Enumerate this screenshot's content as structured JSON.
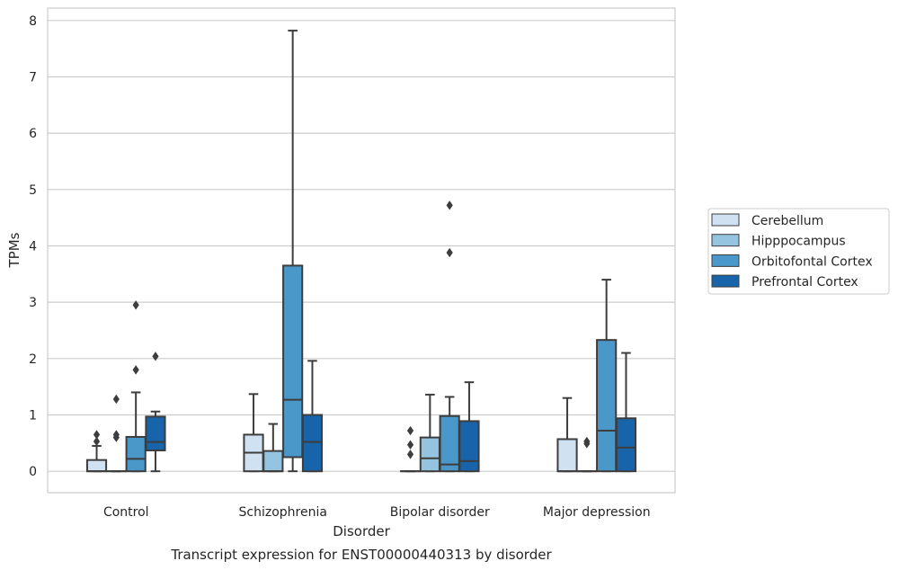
{
  "chart_data": {
    "type": "boxplot",
    "caption": "Transcript expression for ENST00000440313 by disorder",
    "xlabel": "Disorder",
    "ylabel": "TPMs",
    "ylim": [
      -0.38,
      8.22
    ],
    "yticks": [
      0,
      1,
      2,
      3,
      4,
      5,
      6,
      7,
      8
    ],
    "grid": "horizontal",
    "legend_position": "right",
    "categories": [
      "Control",
      "Schizophrenia",
      "Bipolar disorder",
      "Major depression"
    ],
    "series": [
      {
        "name": "Cerebellum",
        "color": "#d0e1f2",
        "boxes": [
          {
            "whislo": 0,
            "q1": 0,
            "med": 0,
            "q3": 0.2,
            "whishi": 0.45,
            "fliers": [
              0.53,
              0.65
            ]
          },
          {
            "whislo": 0,
            "q1": 0,
            "med": 0.33,
            "q3": 0.65,
            "whishi": 1.37,
            "fliers": []
          },
          {
            "whislo": 0,
            "q1": 0,
            "med": 0,
            "q3": 0,
            "whishi": 0,
            "fliers": [
              0.3,
              0.47,
              0.72
            ]
          },
          {
            "whislo": 0,
            "q1": 0,
            "med": 0,
            "q3": 0.57,
            "whishi": 1.3,
            "fliers": []
          }
        ]
      },
      {
        "name": "Hipppocampus",
        "color": "#94c4df",
        "boxes": [
          {
            "whislo": 0,
            "q1": 0,
            "med": 0,
            "q3": 0,
            "whishi": 0,
            "fliers": [
              0.6,
              0.65,
              1.28
            ]
          },
          {
            "whislo": 0,
            "q1": 0,
            "med": 0,
            "q3": 0.36,
            "whishi": 0.84,
            "fliers": []
          },
          {
            "whislo": 0,
            "q1": 0,
            "med": 0.23,
            "q3": 0.6,
            "whishi": 1.36,
            "fliers": []
          },
          {
            "whislo": 0,
            "q1": 0,
            "med": 0,
            "q3": 0,
            "whishi": 0,
            "fliers": [
              0.49,
              0.53
            ]
          }
        ]
      },
      {
        "name": "Orbitofontal Cortex",
        "color": "#4a98c9",
        "boxes": [
          {
            "whislo": 0,
            "q1": 0,
            "med": 0.22,
            "q3": 0.61,
            "whishi": 1.4,
            "fliers": [
              1.8,
              2.95
            ]
          },
          {
            "whislo": 0,
            "q1": 0.25,
            "med": 1.27,
            "q3": 3.65,
            "whishi": 7.82,
            "fliers": []
          },
          {
            "whislo": 0,
            "q1": 0,
            "med": 0.12,
            "q3": 0.98,
            "whishi": 1.32,
            "fliers": [
              3.88,
              4.72
            ]
          },
          {
            "whislo": 0,
            "q1": 0,
            "med": 0.72,
            "q3": 2.33,
            "whishi": 3.4,
            "fliers": []
          }
        ]
      },
      {
        "name": "Prefrontal Cortex",
        "color": "#1764ab",
        "boxes": [
          {
            "whislo": 0,
            "q1": 0.37,
            "med": 0.52,
            "q3": 0.97,
            "whishi": 1.06,
            "fliers": [
              2.04
            ]
          },
          {
            "whislo": 0,
            "q1": 0,
            "med": 0.52,
            "q3": 1.0,
            "whishi": 1.96,
            "fliers": []
          },
          {
            "whislo": 0,
            "q1": 0,
            "med": 0.18,
            "q3": 0.89,
            "whishi": 1.58,
            "fliers": []
          },
          {
            "whislo": 0,
            "q1": 0,
            "med": 0.42,
            "q3": 0.94,
            "whishi": 2.1,
            "fliers": []
          }
        ]
      }
    ]
  }
}
